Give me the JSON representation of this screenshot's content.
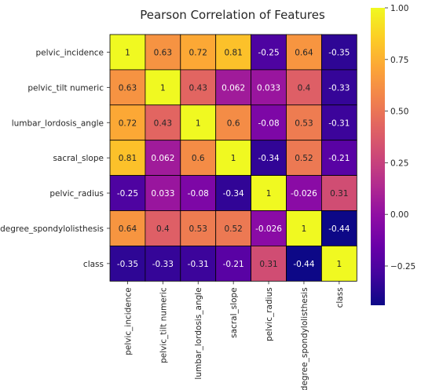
{
  "chart_data": {
    "type": "heatmap",
    "title": "Pearson Correlation of Features",
    "rows": [
      "pelvic_incidence",
      "pelvic_tilt numeric",
      "lumbar_lordosis_angle",
      "sacral_slope",
      "pelvic_radius",
      "degree_spondylolisthesis",
      "class"
    ],
    "columns": [
      "pelvic_incidence",
      "pelvic_tilt numeric",
      "lumbar_lordosis_angle",
      "sacral_slope",
      "pelvic_radius",
      "degree_spondylolisthesis",
      "class"
    ],
    "values": [
      [
        1,
        0.63,
        0.72,
        0.81,
        -0.25,
        0.64,
        -0.35
      ],
      [
        0.63,
        1,
        0.43,
        0.062,
        0.033,
        0.4,
        -0.33
      ],
      [
        0.72,
        0.43,
        1,
        0.6,
        -0.08,
        0.53,
        -0.31
      ],
      [
        0.81,
        0.062,
        0.6,
        1,
        -0.34,
        0.52,
        -0.21
      ],
      [
        -0.25,
        0.033,
        -0.08,
        -0.34,
        1,
        -0.026,
        0.31
      ],
      [
        0.64,
        0.4,
        0.53,
        0.52,
        -0.026,
        1,
        -0.44
      ],
      [
        -0.35,
        -0.33,
        -0.31,
        -0.21,
        0.31,
        -0.44,
        1
      ]
    ],
    "annotations": [
      [
        "1",
        "0.63",
        "0.72",
        "0.81",
        "-0.25",
        "0.64",
        "-0.35"
      ],
      [
        "0.63",
        "1",
        "0.43",
        "0.062",
        "0.033",
        "0.4",
        "-0.33"
      ],
      [
        "0.72",
        "0.43",
        "1",
        "0.6",
        "-0.08",
        "0.53",
        "-0.31"
      ],
      [
        "0.81",
        "0.062",
        "0.6",
        "1",
        "-0.34",
        "0.52",
        "-0.21"
      ],
      [
        "-0.25",
        "0.033",
        "-0.08",
        "-0.34",
        "1",
        "-0.026",
        "0.31"
      ],
      [
        "0.64",
        "0.4",
        "0.53",
        "0.52",
        "-0.026",
        "1",
        "-0.44"
      ],
      [
        "-0.35",
        "-0.33",
        "-0.31",
        "-0.21",
        "0.31",
        "-0.44",
        "1"
      ]
    ],
    "colormap": "plasma",
    "vmin": -0.44,
    "vmax": 1,
    "colorbar_ticks": [
      {
        "value": 1,
        "label": "1.00"
      },
      {
        "value": 0.75,
        "label": "0.75"
      },
      {
        "value": 0.5,
        "label": "0.50"
      },
      {
        "value": 0.25,
        "label": "0.25"
      },
      {
        "value": 0,
        "label": "0.00"
      },
      {
        "value": -0.25,
        "label": "−0.25"
      }
    ],
    "cell_border_color": "#000000"
  }
}
